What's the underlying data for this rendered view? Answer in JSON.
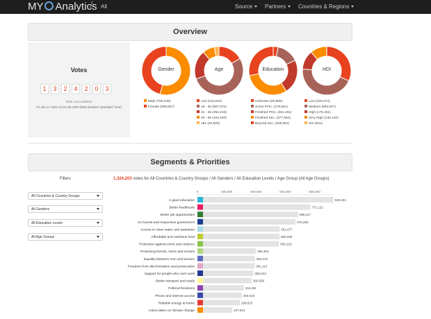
{
  "navbar": {
    "brand_prefix": "MY",
    "brand_suffix": "Analytics",
    "crumb": "All",
    "menu": [
      {
        "label": "Source"
      },
      {
        "label": "Partners"
      },
      {
        "label": "Countries & Regions"
      }
    ]
  },
  "overview": {
    "title": "Overview",
    "votes_title": "Votes",
    "digits": [
      "1",
      "3",
      "2",
      "4",
      "2",
      "0",
      "3"
    ],
    "updated_label": "Data Last Updated",
    "updated_value": "Fri Jan 17 2014 10:24:35 GMT-0500 (Eastern Standard Time)"
  },
  "donuts": [
    {
      "label": "Gender",
      "segments": [
        {
          "name": "Male (705,349)",
          "value": 705349,
          "color": "#fb8c00"
        },
        {
          "name": "Female (599,557)",
          "value": 599557,
          "color": "#e8431e"
        }
      ]
    },
    {
      "label": "Age",
      "segments": [
        {
          "name": "u15 (215,943)",
          "value": 215943,
          "color": "#e8431e"
        },
        {
          "name": "16 - 30 (687,072)",
          "value": 687072,
          "color": "#a86359"
        },
        {
          "name": "31 - 45 (252,216)",
          "value": 252216,
          "color": "#c0392b"
        },
        {
          "name": "46 - 60 (104,340)",
          "value": 104340,
          "color": "#fb8c00"
        },
        {
          "name": "o61 (40,500)",
          "value": 40500,
          "color": "#ffb74d"
        }
      ]
    },
    {
      "label": "Education",
      "segments": [
        {
          "name": "Unknown (40,806)",
          "value": 40806,
          "color": "#e8431e"
        },
        {
          "name": "Some Prim. (178,651)",
          "value": 178651,
          "color": "#a86359"
        },
        {
          "name": "Finished Prim. (281,191)",
          "value": 281191,
          "color": "#c0392b"
        },
        {
          "name": "Finished Sec. (377,964)",
          "value": 377964,
          "color": "#fb8c00"
        },
        {
          "name": "Beyond Sec. (345,591)",
          "value": 345591,
          "color": "#e8431e"
        }
      ]
    },
    {
      "label": "HDI",
      "segments": [
        {
          "name": "Low (420,474)",
          "value": 420474,
          "color": "#e8431e"
        },
        {
          "name": "Medium (583,947)",
          "value": 583947,
          "color": "#a86359"
        },
        {
          "name": "High (170,461)",
          "value": 170461,
          "color": "#c0392b"
        },
        {
          "name": "Very High (145,140)",
          "value": 145140,
          "color": "#fb8c00"
        },
        {
          "name": "N/A (641)",
          "value": 641,
          "color": "#ffb74d"
        }
      ]
    }
  ],
  "segments": {
    "title": "Segments & Priorities",
    "filters_title": "Filters",
    "filters": [
      {
        "label": "All Countries & Country Groups"
      },
      {
        "label": "All Genders"
      },
      {
        "label": "All Education Levels"
      },
      {
        "label": "All Age Groups"
      }
    ],
    "summary_count": "1,324,203",
    "summary_text": "votes for All Countries & Country Groups / All Genders / All Education Levels / Age Group (All Age Groups)"
  },
  "chart_data": {
    "type": "bar",
    "orientation": "horizontal",
    "xlim": [
      0,
      930000
    ],
    "x_ticks": [
      "0",
      "200,000",
      "400,000",
      "600,000",
      "800,000"
    ],
    "x_tick_values": [
      0,
      200000,
      400000,
      600000,
      800000
    ],
    "categories": [
      "A good education",
      "Better healthcare",
      "Better job opportunities",
      "An honest and responsive government",
      "Access to clean water and sanitation",
      "Affordable and nutritious food",
      "Protection against crime and violence",
      "Protecting forests, rivers and oceans",
      "Equality between men and women",
      "Freedom from discrimination and persecution",
      "Support for people who can't work",
      "Better transport and roads",
      "Political freedoms",
      "Phone and internet access",
      "Reliable energy at home",
      "Action taken on climate change"
    ],
    "values": [
      928421,
      771122,
      688117,
      670283,
      561677,
      560329,
      556123,
      398363,
      392076,
      391113,
      382813,
      369559,
      316361,
      302916,
      289625,
      237641
    ],
    "value_labels": [
      "928,421",
      "771,122",
      "688,117",
      "670,283",
      "561,677",
      "560,329",
      "556,123",
      "398,363",
      "392,076",
      "391,113",
      "382,813",
      "369,559",
      "316,361",
      "302,916",
      "289,625",
      "237,641"
    ],
    "colors": [
      "#29b6d8",
      "#e91e63",
      "#2e7d32",
      "#1a3c8e",
      "#a8d8e8",
      "#c0ca33",
      "#8bc34a",
      "#aed581",
      "#5c6bc0",
      "#e1a8c8",
      "#283593",
      "#fff59d",
      "#8e44ad",
      "#3949ab",
      "#e53935",
      "#fb8c00"
    ]
  }
}
